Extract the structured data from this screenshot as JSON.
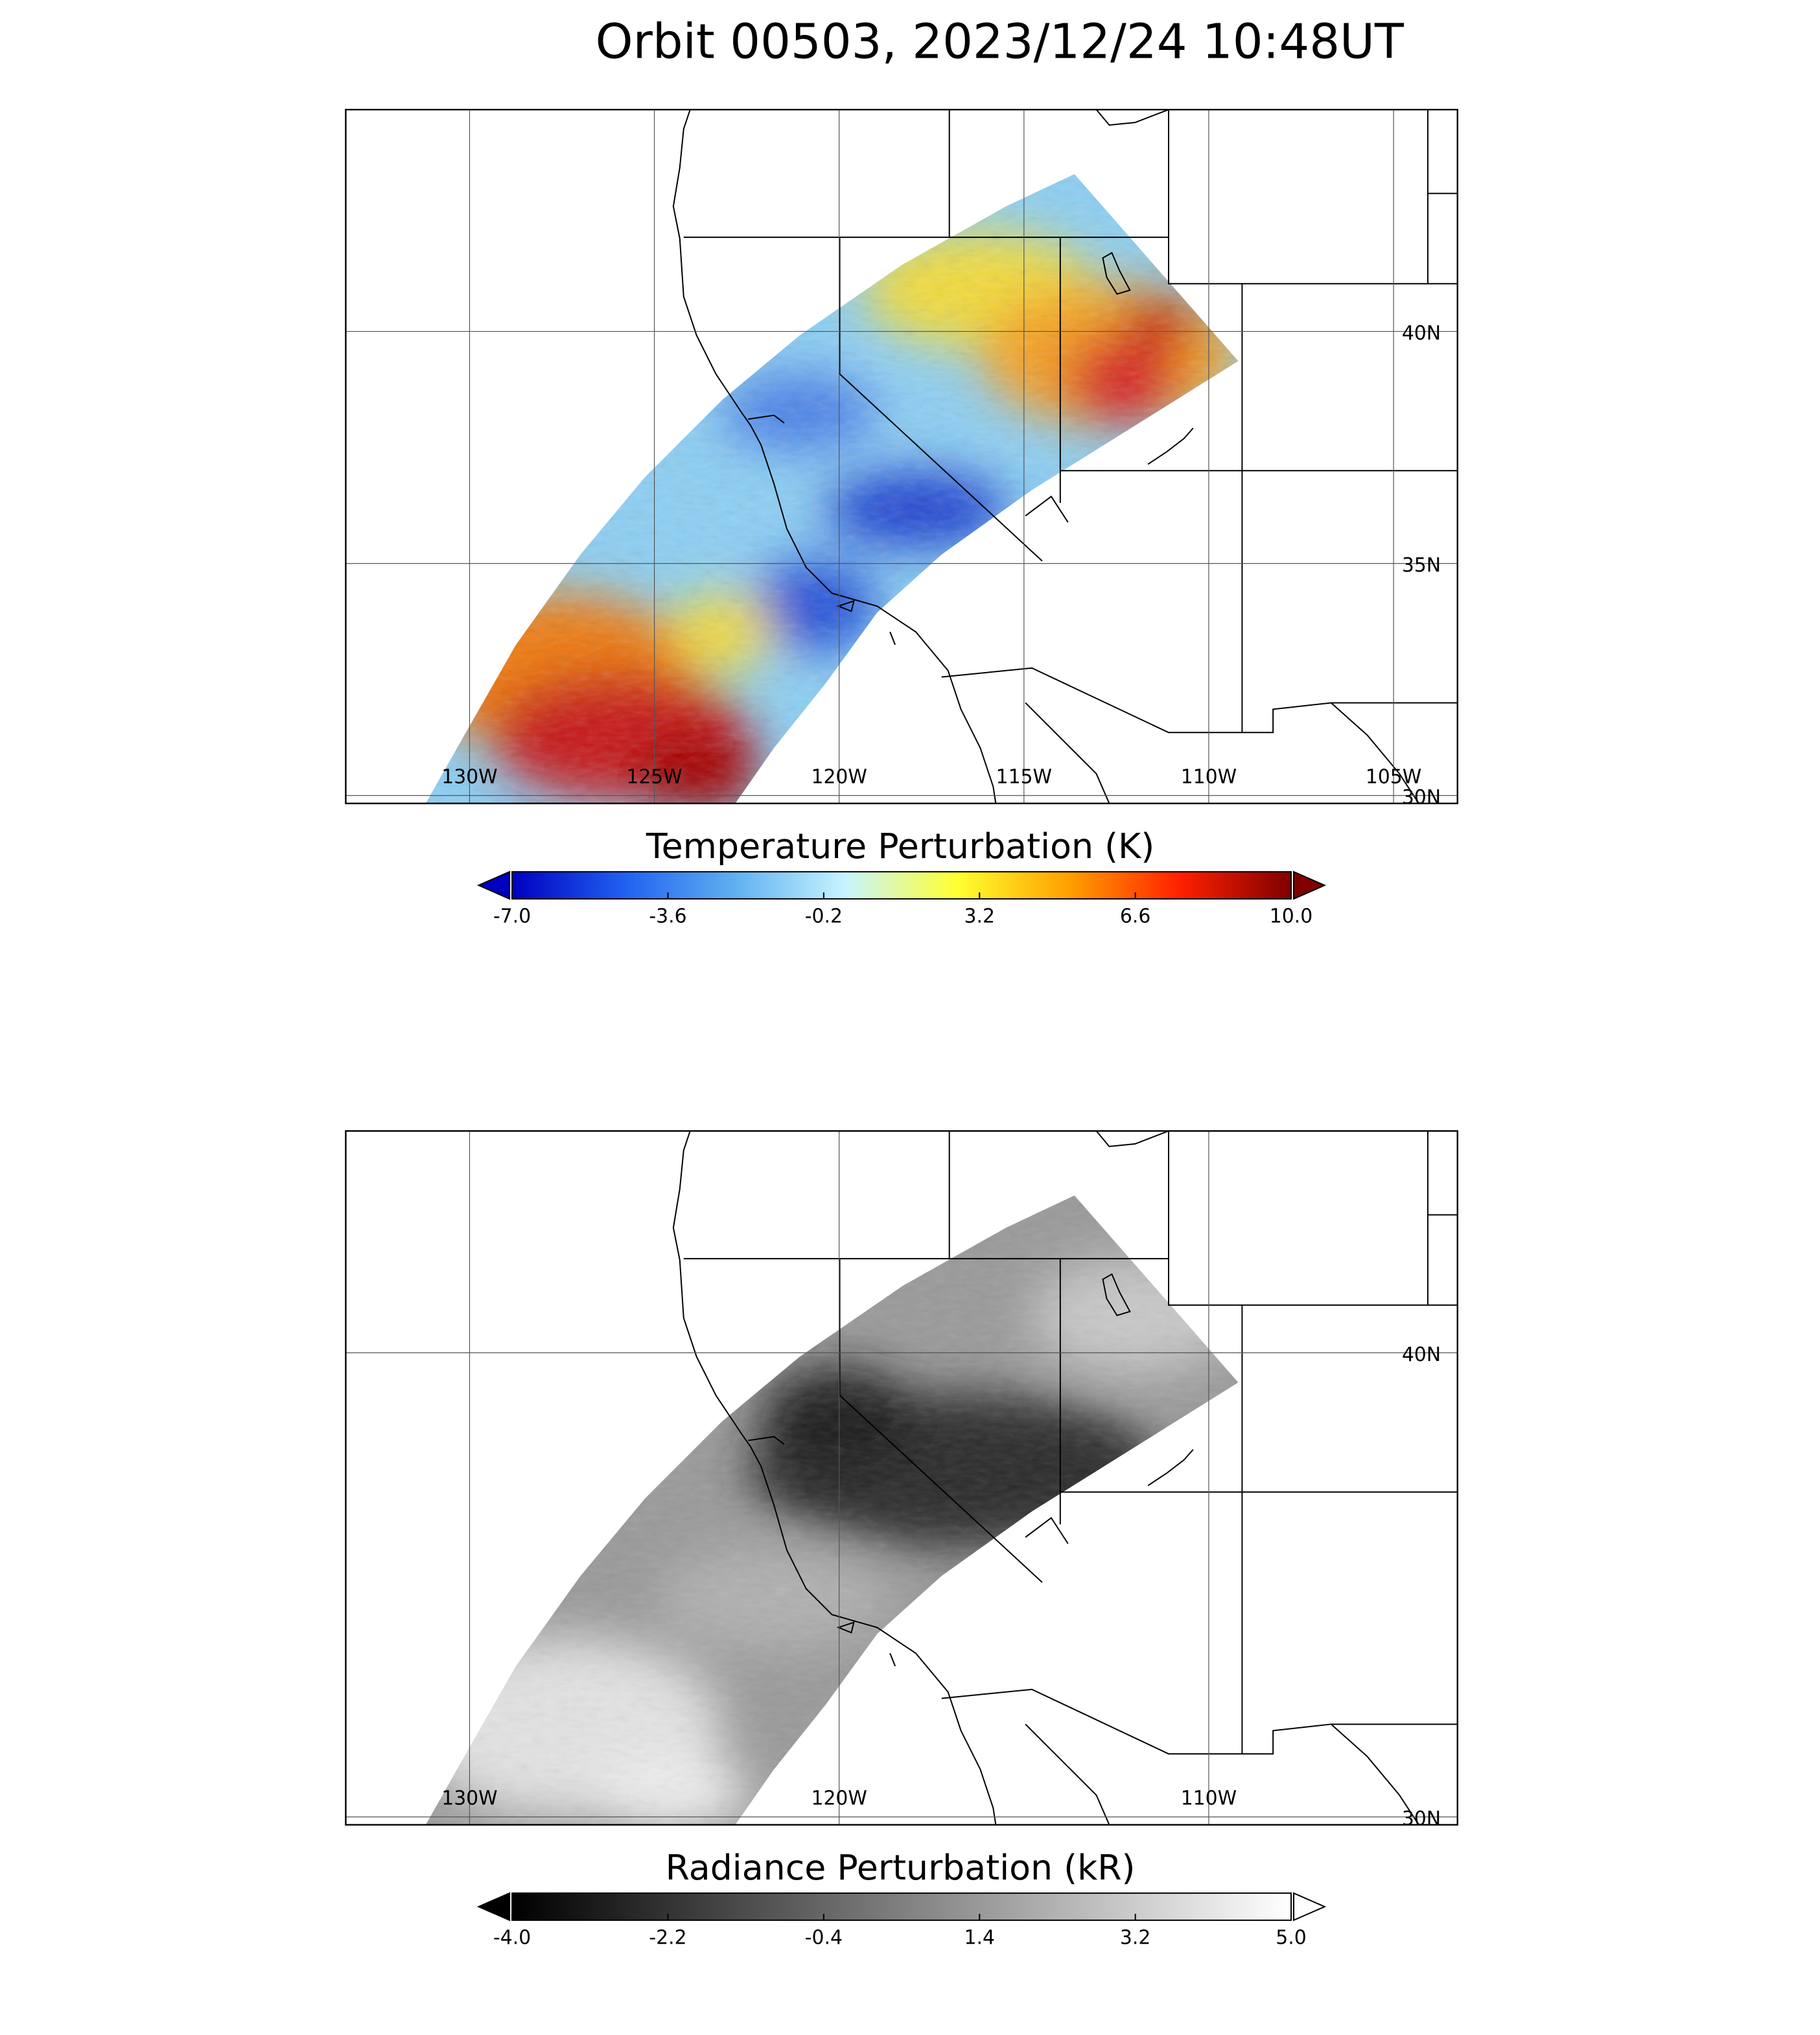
{
  "title": "Orbit 00503, 2023/12/24 10:48UT",
  "map": {
    "lon_range": [
      -133.35,
      -103.27
    ],
    "lat_range": [
      29.83,
      44.78
    ]
  },
  "panels": [
    {
      "colorbar": {
        "title": "Temperature Perturbation (K)",
        "range": [
          -7,
          10
        ],
        "ticks": [
          {
            "value": -7,
            "label": "-7.0"
          },
          {
            "value": -3.6,
            "label": "-3.6"
          },
          {
            "value": -0.2,
            "label": "-0.2"
          },
          {
            "value": 3.2,
            "label": "3.2"
          },
          {
            "value": 6.6,
            "label": "6.6"
          },
          {
            "value": 10,
            "label": "10.0"
          }
        ],
        "colors": [
          "#0000c0",
          "#2060f0",
          "#60b0f0",
          "#c8f4ff",
          "#ffff30",
          "#ffa000",
          "#ff2000",
          "#800000"
        ]
      },
      "lon_ticks": [
        {
          "value": -130,
          "label": "130W"
        },
        {
          "value": -125,
          "label": "125W"
        },
        {
          "value": -120,
          "label": "120W"
        },
        {
          "value": -115,
          "label": "115W"
        },
        {
          "value": -110,
          "label": "110W"
        },
        {
          "value": -105,
          "label": "105W"
        }
      ],
      "lat_ticks": [
        {
          "value": 40,
          "label": "40N"
        },
        {
          "value": 35,
          "label": "35N"
        },
        {
          "value": 30,
          "label": "30N"
        }
      ]
    },
    {
      "colorbar": {
        "title": "Radiance Perturbation (kR)",
        "range": [
          -4,
          5
        ],
        "ticks": [
          {
            "value": -4,
            "label": "-4.0"
          },
          {
            "value": -2.2,
            "label": "-2.2"
          },
          {
            "value": -0.4,
            "label": "-0.4"
          },
          {
            "value": 1.4,
            "label": "1.4"
          },
          {
            "value": 3.2,
            "label": "3.2"
          },
          {
            "value": 5,
            "label": "5.0"
          }
        ],
        "colors": [
          "#000000",
          "#ffffff"
        ]
      },
      "lon_ticks": [
        {
          "value": -130,
          "label": "130W"
        },
        {
          "value": -120,
          "label": "120W"
        },
        {
          "value": -110,
          "label": "110W"
        }
      ],
      "lat_ticks": [
        {
          "value": 40,
          "label": "40N"
        },
        {
          "value": 30,
          "label": "30N"
        }
      ]
    }
  ]
}
